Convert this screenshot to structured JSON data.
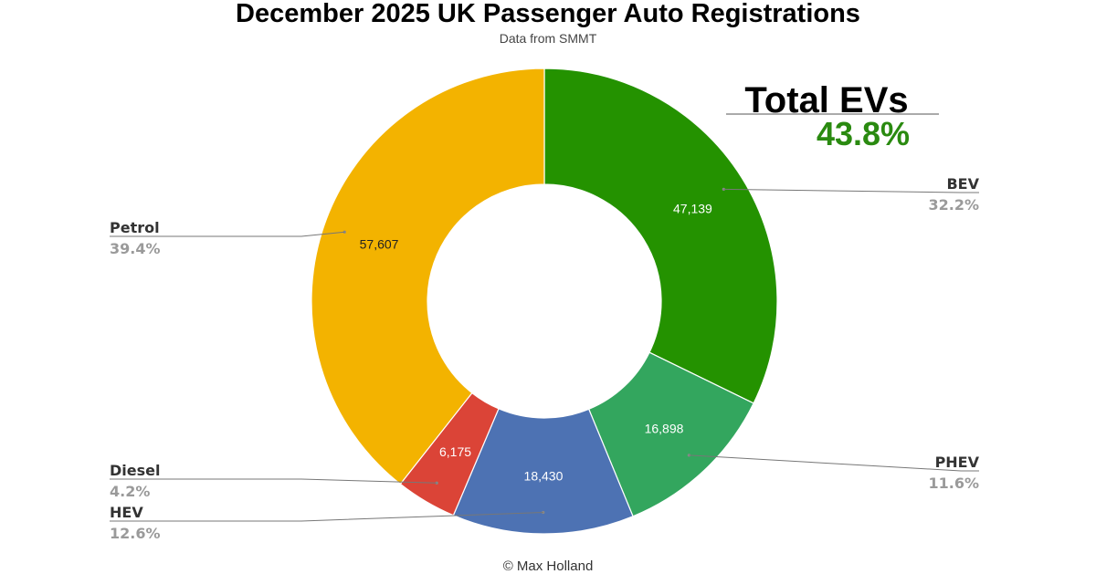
{
  "chart_data": {
    "type": "pie",
    "donut": true,
    "title": "December 2025 UK Passenger Auto Registrations",
    "subtitle": "Data from SMMT",
    "credit": "© Max Holland",
    "callout": {
      "label": "Total EVs",
      "value": "43.8%",
      "color": "#2a8a10"
    },
    "slices": [
      {
        "name": "BEV",
        "value": 47139,
        "value_label": "47,139",
        "percent": "32.2%",
        "color": "#249200",
        "label_side": "right"
      },
      {
        "name": "PHEV",
        "value": 16898,
        "value_label": "16,898",
        "percent": "11.6%",
        "color": "#33a65e",
        "label_side": "right"
      },
      {
        "name": "HEV",
        "value": 18430,
        "value_label": "18,430",
        "percent": "12.6%",
        "color": "#4d72b3",
        "label_side": "left"
      },
      {
        "name": "Diesel",
        "value": 6175,
        "value_label": "6,175",
        "percent": "4.2%",
        "color": "#db4437",
        "label_side": "left"
      },
      {
        "name": "Petrol",
        "value": 57607,
        "value_label": "57,607",
        "percent": "39.4%",
        "color": "#f3b300",
        "label_side": "left"
      }
    ]
  }
}
